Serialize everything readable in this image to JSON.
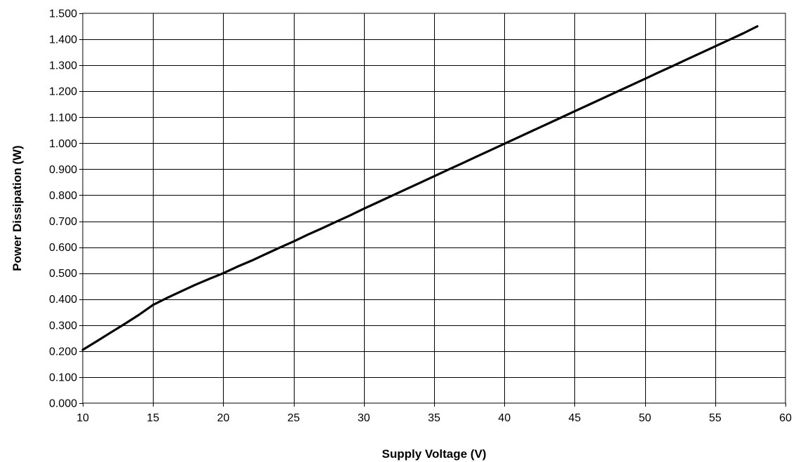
{
  "chart_data": {
    "type": "line",
    "title": "",
    "xlabel": "Supply Voltage (V)",
    "ylabel": "Power Dissipation (W)",
    "xlim": [
      10,
      60
    ],
    "ylim": [
      0,
      1.5
    ],
    "x_ticks": [
      "10",
      "15",
      "20",
      "25",
      "30",
      "35",
      "40",
      "45",
      "50",
      "55",
      "60"
    ],
    "y_ticks": [
      "0.000",
      "0.100",
      "0.200",
      "0.300",
      "0.400",
      "0.500",
      "0.600",
      "0.700",
      "0.800",
      "0.900",
      "1.000",
      "1.100",
      "1.200",
      "1.300",
      "1.400",
      "1.500"
    ],
    "grid": true,
    "legend": "none",
    "series": [
      {
        "color": "#000000",
        "x": [
          10,
          11,
          12,
          13,
          14,
          15,
          16,
          17,
          18,
          19,
          20,
          21,
          22,
          23,
          24,
          25,
          26,
          27,
          28,
          29,
          30,
          31,
          32,
          33,
          34,
          35,
          36,
          37,
          38,
          39,
          40,
          41,
          42,
          43,
          44,
          45,
          46,
          47,
          48,
          49,
          50,
          51,
          52,
          53,
          54,
          55,
          56,
          57,
          58
        ],
        "y": [
          0.205,
          0.238,
          0.272,
          0.305,
          0.34,
          0.378,
          0.405,
          0.43,
          0.455,
          0.478,
          0.5,
          0.525,
          0.548,
          0.573,
          0.598,
          0.622,
          0.648,
          0.672,
          0.697,
          0.722,
          0.748,
          0.773,
          0.798,
          0.823,
          0.848,
          0.873,
          0.898,
          0.923,
          0.948,
          0.973,
          0.998,
          1.023,
          1.048,
          1.073,
          1.098,
          1.123,
          1.148,
          1.173,
          1.198,
          1.223,
          1.248,
          1.273,
          1.298,
          1.323,
          1.348,
          1.373,
          1.398,
          1.423,
          1.45
        ]
      }
    ]
  }
}
